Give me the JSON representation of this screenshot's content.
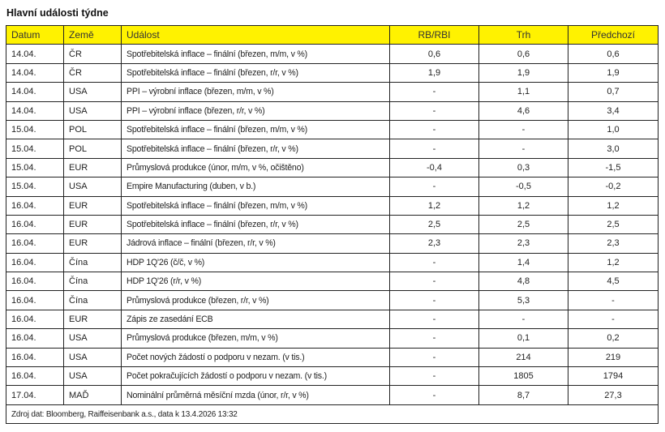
{
  "title": "Hlavní události týdne",
  "columns": [
    "Datum",
    "Země",
    "Událost",
    "RB/RBI",
    "Trh",
    "Předchozí"
  ],
  "header_color": "#fff200",
  "rows": [
    [
      "14.04.",
      "ČR",
      "Spotřebitelská inflace – finální (březen, m/m, v %)",
      "0,6",
      "0,6",
      "0,6"
    ],
    [
      "14.04.",
      "ČR",
      "Spotřebitelská inflace – finální (březen, r/r, v %)",
      "1,9",
      "1,9",
      "1,9"
    ],
    [
      "14.04.",
      "USA",
      "PPI – výrobní inflace (březen, m/m, v %)",
      "-",
      "1,1",
      "0,7"
    ],
    [
      "14.04.",
      "USA",
      "PPI – výrobní inflace (březen, r/r, v %)",
      "-",
      "4,6",
      "3,4"
    ],
    [
      "15.04.",
      "POL",
      "Spotřebitelská inflace – finální (březen, m/m, v %)",
      "-",
      "-",
      "1,0"
    ],
    [
      "15.04.",
      "POL",
      "Spotřebitelská inflace – finální (březen, r/r, v %)",
      "-",
      "-",
      "3,0"
    ],
    [
      "15.04.",
      "EUR",
      "Průmyslová produkce (únor, m/m, v %, očištěno)",
      "-0,4",
      "0,3",
      "-1,5"
    ],
    [
      "15.04.",
      "USA",
      "Empire Manufacturing (duben, v b.)",
      "-",
      "-0,5",
      "-0,2"
    ],
    [
      "16.04.",
      "EUR",
      "Spotřebitelská inflace – finální (březen, m/m, v %)",
      "1,2",
      "1,2",
      "1,2"
    ],
    [
      "16.04.",
      "EUR",
      "Spotřebitelská inflace – finální (březen, r/r, v %)",
      "2,5",
      "2,5",
      "2,5"
    ],
    [
      "16.04.",
      "EUR",
      "Jádrová inflace – finální (březen, r/r, v %)",
      "2,3",
      "2,3",
      "2,3"
    ],
    [
      "16.04.",
      "Čína",
      "HDP 1Q'26 (č/č, v %)",
      "-",
      "1,4",
      "1,2"
    ],
    [
      "16.04.",
      "Čína",
      "HDP 1Q'26 (r/r, v %)",
      "-",
      "4,8",
      "4,5"
    ],
    [
      "16.04.",
      "Čína",
      "Průmyslová produkce (březen, r/r, v %)",
      "-",
      "5,3",
      "-"
    ],
    [
      "16.04.",
      "EUR",
      "Zápis ze zasedání ECB",
      "-",
      "-",
      "-"
    ],
    [
      "16.04.",
      "USA",
      "Průmyslová produkce (březen, m/m, v %)",
      "-",
      "0,1",
      "0,2"
    ],
    [
      "16.04.",
      "USA",
      "Počet nových žádostí o podporu v nezam. (v tis.)",
      "-",
      "214",
      "219"
    ],
    [
      "16.04.",
      "USA",
      "Počet pokračujících žádostí o podporu v nezam. (v tis.)",
      "-",
      "1805",
      "1794"
    ],
    [
      "17.04.",
      "MAĎ",
      "Nominální průměrná měsíční mzda (únor, r/r, v %)",
      "-",
      "8,7",
      "27,3"
    ]
  ],
  "footer": "Zdroj dat: Bloomberg, Raiffeisenbank a.s., data k  13.4.2026 13:32"
}
